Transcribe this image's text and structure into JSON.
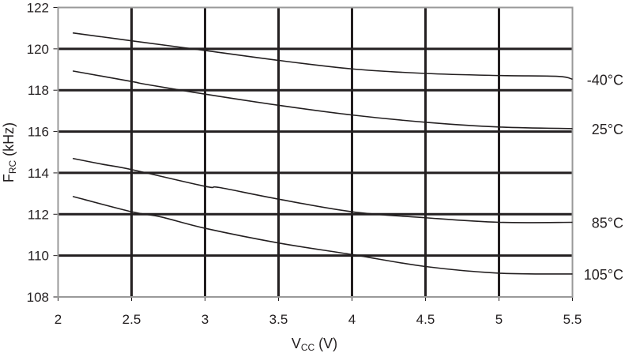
{
  "chart_data": {
    "type": "line",
    "title": "",
    "xlabel": "V",
    "xlabel_sub": "CC",
    "xlabel_unit": " (V)",
    "ylabel": "F",
    "ylabel_sub": "RC",
    "ylabel_unit": " (kHz)",
    "xlim": [
      2,
      5.5
    ],
    "ylim": [
      108,
      122
    ],
    "xticks": [
      "2",
      "2.5",
      "3",
      "3.5",
      "4",
      "4.5",
      "5",
      "5.5"
    ],
    "yticks": [
      "108",
      "110",
      "112",
      "114",
      "116",
      "118",
      "120",
      "122"
    ],
    "grid": true,
    "legend": "right, labels at line ends",
    "series": [
      {
        "name": "-40°C",
        "x": [
          2.1,
          2.5,
          3.0,
          3.5,
          4.0,
          4.5,
          5.0,
          5.4,
          5.5
        ],
        "y": [
          120.77,
          120.39,
          119.92,
          119.44,
          119.03,
          118.81,
          118.71,
          118.67,
          118.53
        ]
      },
      {
        "name": "25°C",
        "x": [
          2.1,
          2.5,
          2.6,
          3.0,
          3.5,
          4.0,
          4.5,
          5.0,
          5.5
        ],
        "y": [
          118.93,
          118.42,
          118.28,
          117.81,
          117.27,
          116.8,
          116.45,
          116.22,
          116.14
        ]
      },
      {
        "name": "85°C",
        "x": [
          2.1,
          2.3,
          2.5,
          3.0,
          3.1,
          3.5,
          4.0,
          4.5,
          5.0,
          5.5
        ],
        "y": [
          114.7,
          114.42,
          114.16,
          113.35,
          113.29,
          112.73,
          112.12,
          111.83,
          111.61,
          111.61
        ]
      },
      {
        "name": "105°C",
        "x": [
          2.1,
          2.5,
          2.7,
          3.0,
          3.5,
          4.0,
          4.5,
          5.0,
          5.5
        ],
        "y": [
          112.86,
          112.12,
          111.87,
          111.32,
          110.61,
          110.05,
          109.47,
          109.15,
          109.11
        ]
      }
    ],
    "colors": {
      "line": "#231f20",
      "grid": "#231f20",
      "frame": "#999999"
    }
  }
}
